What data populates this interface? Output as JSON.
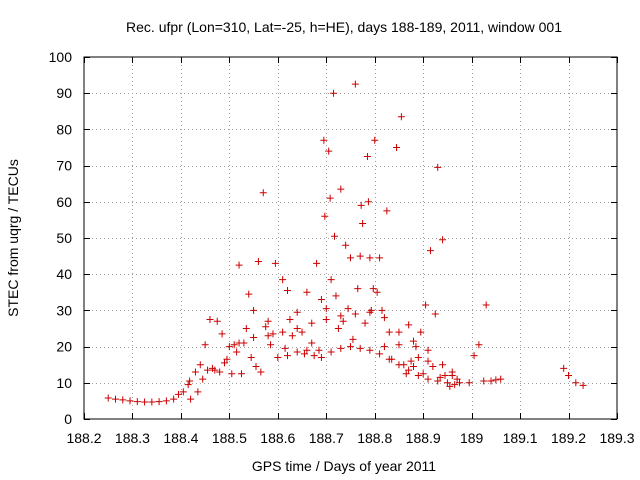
{
  "chart_data": {
    "type": "scatter",
    "title": "Rec. ufpr (Lon=310, Lat=-25, h=HE), days 188-189, 2011, window 001",
    "xlabel": "GPS time / Days of year 2011",
    "ylabel": "STEC from uqrg / TECUs",
    "xlim": [
      188.2,
      189.3
    ],
    "ylim": [
      0,
      100
    ],
    "xticks": [
      188.2,
      188.3,
      188.4,
      188.5,
      188.6,
      188.7,
      188.8,
      188.9,
      189,
      189.1,
      189.2,
      189.3
    ],
    "xtick_labels": [
      "188.2",
      "188.3",
      "188.4",
      "188.5",
      "188.6",
      "188.7",
      "188.8",
      "188.9",
      "189",
      "189.1",
      "189.2",
      "189.3"
    ],
    "yticks": [
      0,
      10,
      20,
      30,
      40,
      50,
      60,
      70,
      80,
      90,
      100
    ],
    "ytick_labels": [
      "0",
      "10",
      "20",
      "30",
      "40",
      "50",
      "60",
      "70",
      "80",
      "90",
      "100"
    ],
    "grid": true,
    "marker": "+",
    "color": "#cc0000",
    "series": [
      {
        "name": "STEC",
        "points": [
          [
            188.25,
            5.8
          ],
          [
            188.265,
            5.5
          ],
          [
            188.28,
            5.3
          ],
          [
            188.295,
            5.0
          ],
          [
            188.31,
            4.8
          ],
          [
            188.325,
            4.7
          ],
          [
            188.34,
            4.7
          ],
          [
            188.355,
            4.8
          ],
          [
            188.37,
            5.0
          ],
          [
            188.385,
            5.5
          ],
          [
            188.395,
            6.8
          ],
          [
            188.405,
            7.5
          ],
          [
            188.415,
            9.5
          ],
          [
            188.418,
            10.5
          ],
          [
            188.42,
            5.5
          ],
          [
            188.43,
            13.0
          ],
          [
            188.435,
            7.5
          ],
          [
            188.44,
            15.0
          ],
          [
            188.445,
            11.0
          ],
          [
            188.45,
            20.5
          ],
          [
            188.455,
            13.5
          ],
          [
            188.46,
            27.5
          ],
          [
            188.465,
            14.0
          ],
          [
            188.47,
            13.5
          ],
          [
            188.475,
            27.0
          ],
          [
            188.48,
            13.0
          ],
          [
            188.485,
            23.5
          ],
          [
            188.49,
            15.5
          ],
          [
            188.495,
            16.5
          ],
          [
            188.5,
            20.0
          ],
          [
            188.505,
            12.5
          ],
          [
            188.51,
            20.5
          ],
          [
            188.515,
            18.5
          ],
          [
            188.52,
            42.5
          ],
          [
            188.525,
            12.5
          ],
          [
            188.53,
            21.0
          ],
          [
            188.535,
            25.0
          ],
          [
            188.54,
            34.5
          ],
          [
            188.545,
            17.0
          ],
          [
            188.55,
            30.0
          ],
          [
            188.555,
            14.5
          ],
          [
            188.56,
            43.5
          ],
          [
            188.565,
            13.0
          ],
          [
            188.57,
            62.5
          ],
          [
            188.575,
            25.5
          ],
          [
            188.58,
            27.0
          ],
          [
            188.585,
            20.5
          ],
          [
            188.59,
            23.5
          ],
          [
            188.595,
            43.0
          ],
          [
            188.6,
            17.0
          ],
          [
            188.61,
            38.5
          ],
          [
            188.615,
            19.5
          ],
          [
            188.62,
            35.5
          ],
          [
            188.625,
            27.5
          ],
          [
            188.63,
            23.0
          ],
          [
            188.64,
            29.5
          ],
          [
            188.65,
            24.0
          ],
          [
            188.655,
            18.0
          ],
          [
            188.66,
            35.0
          ],
          [
            188.67,
            21.0
          ],
          [
            188.675,
            17.5
          ],
          [
            188.68,
            43.0
          ],
          [
            188.685,
            19.0
          ],
          [
            188.69,
            33.0
          ],
          [
            188.695,
            77.0
          ],
          [
            188.697,
            56.0
          ],
          [
            188.7,
            30.5
          ],
          [
            188.705,
            74.0
          ],
          [
            188.708,
            61.0
          ],
          [
            188.71,
            38.5
          ],
          [
            188.715,
            90.0
          ],
          [
            188.717,
            50.5
          ],
          [
            188.72,
            34.0
          ],
          [
            188.725,
            25.0
          ],
          [
            188.73,
            63.5
          ],
          [
            188.735,
            27.0
          ],
          [
            188.74,
            48.0
          ],
          [
            188.745,
            30.5
          ],
          [
            188.75,
            44.5
          ],
          [
            188.755,
            22.0
          ],
          [
            188.76,
            92.5
          ],
          [
            188.765,
            36.0
          ],
          [
            188.77,
            45.0
          ],
          [
            188.772,
            59.0
          ],
          [
            188.775,
            54.0
          ],
          [
            188.78,
            26.5
          ],
          [
            188.785,
            72.5
          ],
          [
            188.787,
            60.0
          ],
          [
            188.79,
            44.5
          ],
          [
            188.793,
            30.0
          ],
          [
            188.797,
            36.0
          ],
          [
            188.8,
            77.0
          ],
          [
            188.805,
            35.0
          ],
          [
            188.81,
            44.5
          ],
          [
            188.815,
            30.0
          ],
          [
            188.82,
            20.0
          ],
          [
            188.825,
            57.5
          ],
          [
            188.83,
            24.0
          ],
          [
            188.835,
            16.5
          ],
          [
            188.845,
            75.0
          ],
          [
            188.85,
            20.5
          ],
          [
            188.855,
            83.5
          ],
          [
            188.86,
            15.0
          ],
          [
            188.865,
            12.5
          ],
          [
            188.87,
            26.0
          ],
          [
            188.875,
            16.0
          ],
          [
            188.88,
            14.5
          ],
          [
            188.885,
            20.0
          ],
          [
            188.89,
            17.0
          ],
          [
            188.895,
            24.0
          ],
          [
            188.9,
            12.5
          ],
          [
            188.905,
            31.5
          ],
          [
            188.91,
            16.0
          ],
          [
            188.915,
            46.5
          ],
          [
            188.92,
            14.5
          ],
          [
            188.925,
            29.0
          ],
          [
            188.93,
            69.5
          ],
          [
            188.935,
            11.5
          ],
          [
            188.94,
            49.5
          ],
          [
            188.945,
            12.0
          ],
          [
            188.95,
            10.0
          ],
          [
            188.955,
            9.0
          ],
          [
            188.96,
            12.0
          ],
          [
            188.965,
            9.5
          ],
          [
            188.97,
            11.0
          ],
          [
            188.975,
            10.0
          ],
          [
            188.995,
            10.0
          ],
          [
            189.005,
            17.5
          ],
          [
            189.015,
            20.5
          ],
          [
            189.025,
            10.5
          ],
          [
            189.03,
            31.5
          ],
          [
            189.04,
            10.5
          ],
          [
            189.05,
            10.8
          ],
          [
            189.06,
            11.0
          ],
          [
            189.19,
            14.0
          ],
          [
            189.2,
            12.0
          ],
          [
            189.215,
            10.0
          ],
          [
            189.23,
            9.3
          ],
          [
            188.62,
            17.5
          ],
          [
            188.64,
            18.5
          ],
          [
            188.66,
            19.0
          ],
          [
            188.69,
            17.0
          ],
          [
            188.71,
            18.5
          ],
          [
            188.73,
            19.5
          ],
          [
            188.75,
            20.0
          ],
          [
            188.77,
            19.5
          ],
          [
            188.79,
            19.0
          ],
          [
            188.81,
            18.0
          ],
          [
            188.83,
            16.5
          ],
          [
            188.85,
            15.0
          ],
          [
            188.87,
            13.5
          ],
          [
            188.89,
            12.0
          ],
          [
            188.91,
            11.0
          ],
          [
            188.93,
            10.5
          ],
          [
            188.52,
            21.0
          ],
          [
            188.55,
            22.5
          ],
          [
            188.58,
            23.0
          ],
          [
            188.61,
            24.0
          ],
          [
            188.64,
            25.0
          ],
          [
            188.67,
            26.5
          ],
          [
            188.7,
            27.5
          ],
          [
            188.73,
            28.5
          ],
          [
            188.76,
            29.0
          ],
          [
            188.79,
            29.5
          ],
          [
            188.82,
            28.0
          ],
          [
            188.85,
            24.0
          ],
          [
            188.88,
            21.5
          ],
          [
            188.91,
            19.0
          ],
          [
            188.94,
            15.0
          ],
          [
            188.96,
            13.0
          ]
        ]
      }
    ]
  }
}
